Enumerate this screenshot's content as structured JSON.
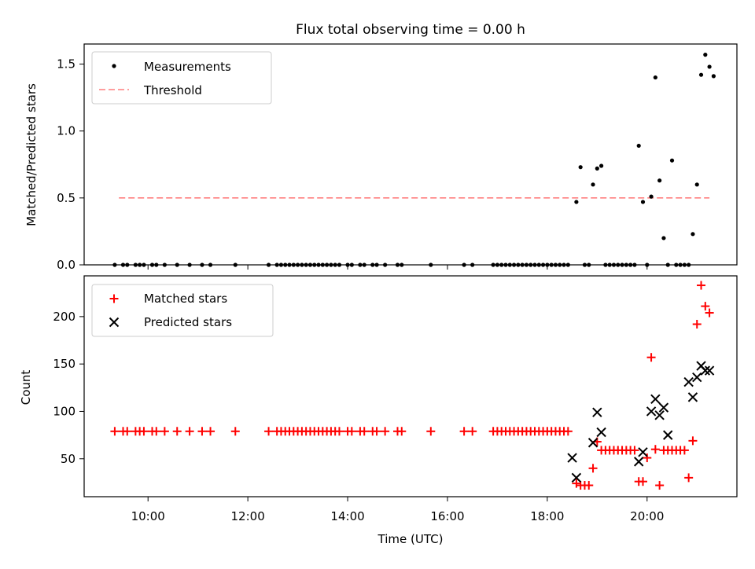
{
  "chart_data": {
    "title": "Flux total observing time = 0.00 h",
    "xlabel": "Time (UTC)",
    "x_ticks": [
      "10:00",
      "12:00",
      "14:00",
      "16:00",
      "18:00",
      "20:00"
    ],
    "x_tick_hours": [
      10,
      12,
      14,
      16,
      18,
      20
    ],
    "colors": {
      "measurements": "#000000",
      "threshold": "#ff7f7f",
      "matched": "#ff0000",
      "predicted": "#000000"
    },
    "top": {
      "type": "scatter",
      "ylabel": "Matched/Predicted stars",
      "ylim": [
        0,
        1.65
      ],
      "y_ticks": [
        "0.0",
        "0.5",
        "1.0",
        "1.5"
      ],
      "y_tick_values": [
        0,
        0.5,
        1.0,
        1.5
      ],
      "legend": {
        "placement": "top-left",
        "measurements": "Measurements",
        "threshold": "Threshold"
      },
      "threshold": {
        "value": 0.5,
        "x_start": "09:25",
        "x_end": "21:15"
      },
      "measurements": [
        [
          "09:20",
          0
        ],
        [
          "09:30",
          0
        ],
        [
          "09:35",
          0
        ],
        [
          "09:45",
          0
        ],
        [
          "09:50",
          0
        ],
        [
          "09:55",
          0
        ],
        [
          "10:05",
          0
        ],
        [
          "10:10",
          0
        ],
        [
          "10:20",
          0
        ],
        [
          "10:35",
          0
        ],
        [
          "10:50",
          0
        ],
        [
          "11:05",
          0
        ],
        [
          "11:15",
          0
        ],
        [
          "11:45",
          0
        ],
        [
          "12:25",
          0
        ],
        [
          "12:35",
          0
        ],
        [
          "12:40",
          0
        ],
        [
          "12:45",
          0
        ],
        [
          "12:50",
          0
        ],
        [
          "12:55",
          0
        ],
        [
          "13:00",
          0
        ],
        [
          "13:05",
          0
        ],
        [
          "13:10",
          0
        ],
        [
          "13:15",
          0
        ],
        [
          "13:20",
          0
        ],
        [
          "13:25",
          0
        ],
        [
          "13:30",
          0
        ],
        [
          "13:35",
          0
        ],
        [
          "13:40",
          0
        ],
        [
          "13:45",
          0
        ],
        [
          "13:50",
          0
        ],
        [
          "14:00",
          0
        ],
        [
          "14:05",
          0
        ],
        [
          "14:15",
          0
        ],
        [
          "14:20",
          0
        ],
        [
          "14:30",
          0
        ],
        [
          "14:35",
          0
        ],
        [
          "14:45",
          0
        ],
        [
          "15:00",
          0
        ],
        [
          "15:05",
          0
        ],
        [
          "15:40",
          0
        ],
        [
          "16:20",
          0
        ],
        [
          "16:30",
          0
        ],
        [
          "16:55",
          0
        ],
        [
          "17:00",
          0
        ],
        [
          "17:05",
          0
        ],
        [
          "17:10",
          0
        ],
        [
          "17:15",
          0
        ],
        [
          "17:20",
          0
        ],
        [
          "17:25",
          0
        ],
        [
          "17:30",
          0
        ],
        [
          "17:35",
          0
        ],
        [
          "17:40",
          0
        ],
        [
          "17:45",
          0
        ],
        [
          "17:50",
          0
        ],
        [
          "17:55",
          0
        ],
        [
          "18:00",
          0
        ],
        [
          "18:05",
          0
        ],
        [
          "18:10",
          0
        ],
        [
          "18:15",
          0
        ],
        [
          "18:20",
          0
        ],
        [
          "18:25",
          0
        ],
        [
          "18:35",
          0.47
        ],
        [
          "18:40",
          0.73
        ],
        [
          "18:45",
          0
        ],
        [
          "18:50",
          0
        ],
        [
          "18:55",
          0.6
        ],
        [
          "19:00",
          0.72
        ],
        [
          "19:05",
          0.74
        ],
        [
          "19:10",
          0
        ],
        [
          "19:15",
          0
        ],
        [
          "19:20",
          0
        ],
        [
          "19:25",
          0
        ],
        [
          "19:30",
          0
        ],
        [
          "19:35",
          0
        ],
        [
          "19:40",
          0
        ],
        [
          "19:45",
          0
        ],
        [
          "19:50",
          0.89
        ],
        [
          "19:55",
          0.47
        ],
        [
          "20:00",
          0
        ],
        [
          "20:05",
          0.51
        ],
        [
          "20:10",
          1.4
        ],
        [
          "20:15",
          0.63
        ],
        [
          "20:20",
          0.2
        ],
        [
          "20:25",
          0
        ],
        [
          "20:30",
          0.78
        ],
        [
          "20:35",
          0
        ],
        [
          "20:40",
          0
        ],
        [
          "20:45",
          0
        ],
        [
          "20:50",
          0
        ],
        [
          "20:55",
          0.23
        ],
        [
          "21:00",
          0.6
        ],
        [
          "21:05",
          1.42
        ],
        [
          "21:10",
          1.57
        ],
        [
          "21:15",
          1.48
        ],
        [
          "21:20",
          1.41
        ]
      ]
    },
    "bottom": {
      "type": "scatter",
      "ylabel": "Count",
      "ylim": [
        10,
        243
      ],
      "y_ticks": [
        "50",
        "100",
        "150",
        "200"
      ],
      "y_tick_values": [
        50,
        100,
        150,
        200
      ],
      "legend": {
        "placement": "top-left",
        "matched": "Matched stars",
        "predicted": "Predicted stars"
      },
      "matched": [
        [
          "09:20",
          79
        ],
        [
          "09:30",
          79
        ],
        [
          "09:35",
          79
        ],
        [
          "09:45",
          79
        ],
        [
          "09:50",
          79
        ],
        [
          "09:55",
          79
        ],
        [
          "10:05",
          79
        ],
        [
          "10:10",
          79
        ],
        [
          "10:20",
          79
        ],
        [
          "10:35",
          79
        ],
        [
          "10:50",
          79
        ],
        [
          "11:05",
          79
        ],
        [
          "11:15",
          79
        ],
        [
          "11:45",
          79
        ],
        [
          "12:25",
          79
        ],
        [
          "12:35",
          79
        ],
        [
          "12:40",
          79
        ],
        [
          "12:45",
          79
        ],
        [
          "12:50",
          79
        ],
        [
          "12:55",
          79
        ],
        [
          "13:00",
          79
        ],
        [
          "13:05",
          79
        ],
        [
          "13:10",
          79
        ],
        [
          "13:15",
          79
        ],
        [
          "13:20",
          79
        ],
        [
          "13:25",
          79
        ],
        [
          "13:30",
          79
        ],
        [
          "13:35",
          79
        ],
        [
          "13:40",
          79
        ],
        [
          "13:45",
          79
        ],
        [
          "13:50",
          79
        ],
        [
          "14:00",
          79
        ],
        [
          "14:05",
          79
        ],
        [
          "14:15",
          79
        ],
        [
          "14:20",
          79
        ],
        [
          "14:30",
          79
        ],
        [
          "14:35",
          79
        ],
        [
          "14:45",
          79
        ],
        [
          "15:00",
          79
        ],
        [
          "15:05",
          79
        ],
        [
          "15:40",
          79
        ],
        [
          "16:20",
          79
        ],
        [
          "16:30",
          79
        ],
        [
          "16:55",
          79
        ],
        [
          "17:00",
          79
        ],
        [
          "17:05",
          79
        ],
        [
          "17:10",
          79
        ],
        [
          "17:15",
          79
        ],
        [
          "17:20",
          79
        ],
        [
          "17:25",
          79
        ],
        [
          "17:30",
          79
        ],
        [
          "17:35",
          79
        ],
        [
          "17:40",
          79
        ],
        [
          "17:45",
          79
        ],
        [
          "17:50",
          79
        ],
        [
          "17:55",
          79
        ],
        [
          "18:00",
          79
        ],
        [
          "18:05",
          79
        ],
        [
          "18:10",
          79
        ],
        [
          "18:15",
          79
        ],
        [
          "18:20",
          79
        ],
        [
          "18:25",
          79
        ],
        [
          "18:35",
          24
        ],
        [
          "18:40",
          22
        ],
        [
          "18:45",
          22
        ],
        [
          "18:50",
          22
        ],
        [
          "18:55",
          40
        ],
        [
          "19:00",
          68
        ],
        [
          "19:05",
          59
        ],
        [
          "19:10",
          59
        ],
        [
          "19:15",
          59
        ],
        [
          "19:20",
          59
        ],
        [
          "19:25",
          59
        ],
        [
          "19:30",
          59
        ],
        [
          "19:35",
          59
        ],
        [
          "19:40",
          59
        ],
        [
          "19:45",
          59
        ],
        [
          "19:50",
          26
        ],
        [
          "19:55",
          26
        ],
        [
          "20:00",
          51
        ],
        [
          "20:05",
          157
        ],
        [
          "20:10",
          60
        ],
        [
          "20:15",
          22
        ],
        [
          "20:20",
          59
        ],
        [
          "20:25",
          59
        ],
        [
          "20:30",
          59
        ],
        [
          "20:35",
          59
        ],
        [
          "20:40",
          59
        ],
        [
          "20:45",
          59
        ],
        [
          "20:50",
          30
        ],
        [
          "20:55",
          69
        ],
        [
          "21:00",
          192
        ],
        [
          "21:05",
          233
        ],
        [
          "21:10",
          211
        ],
        [
          "21:15",
          204
        ]
      ],
      "predicted": [
        [
          "18:30",
          51
        ],
        [
          "18:35",
          30
        ],
        [
          "18:55",
          67
        ],
        [
          "19:00",
          99
        ],
        [
          "19:05",
          78
        ],
        [
          "19:50",
          47
        ],
        [
          "19:55",
          57
        ],
        [
          "20:05",
          100
        ],
        [
          "20:10",
          113
        ],
        [
          "20:15",
          96
        ],
        [
          "20:20",
          104
        ],
        [
          "20:25",
          75
        ],
        [
          "20:50",
          131
        ],
        [
          "20:55",
          115
        ],
        [
          "21:00",
          136
        ],
        [
          "21:05",
          148
        ],
        [
          "21:10",
          143
        ],
        [
          "21:15",
          143
        ]
      ]
    }
  }
}
